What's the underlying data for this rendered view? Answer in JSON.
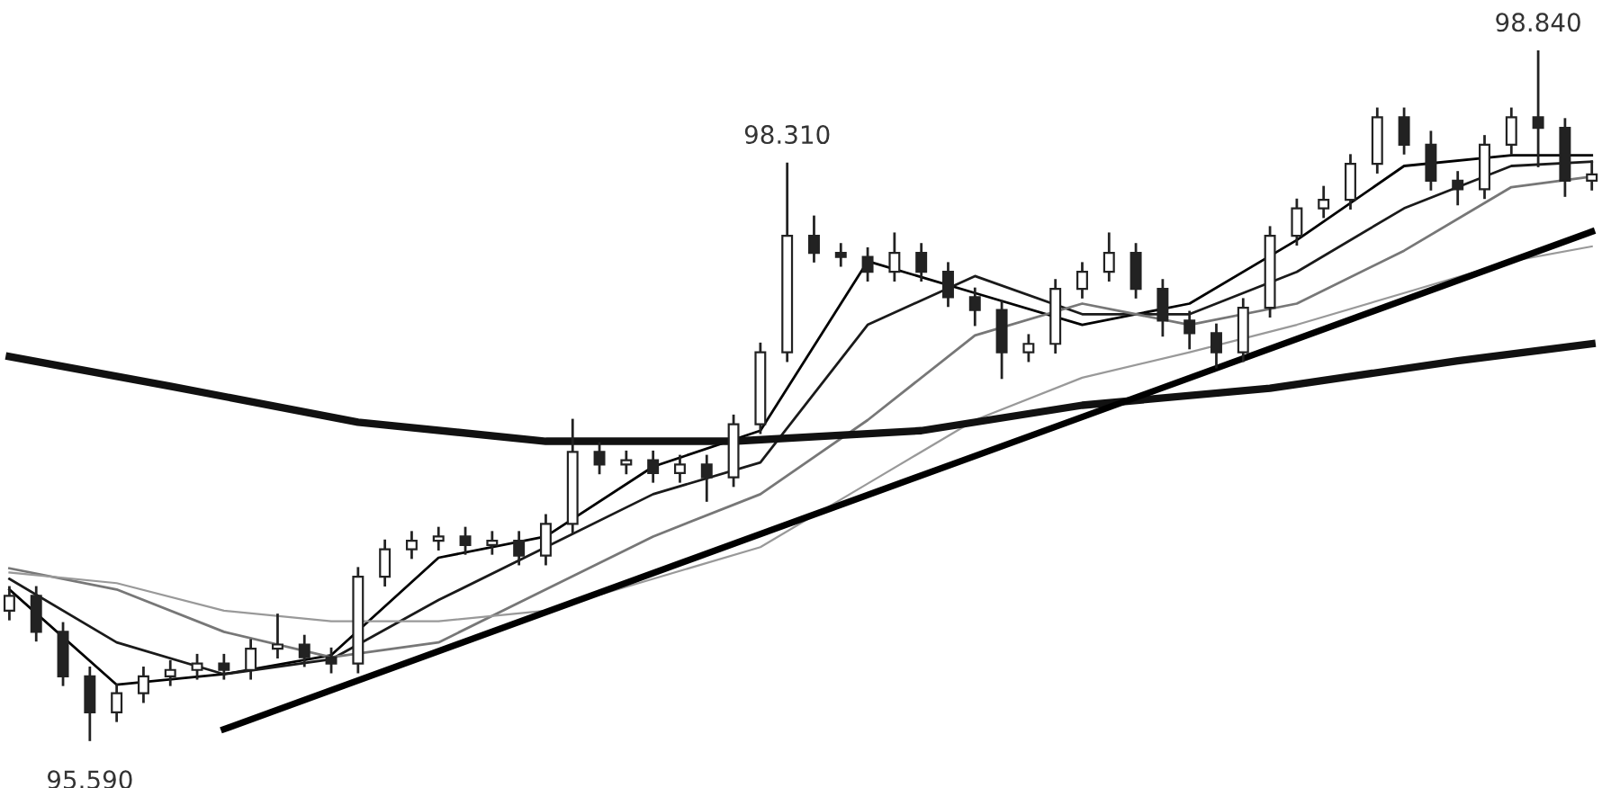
{
  "chart_data": {
    "type": "candlestick",
    "legend": false,
    "categories": [
      null,
      null,
      null,
      null,
      null,
      null,
      null,
      null,
      null,
      null,
      null,
      null,
      null,
      null,
      null,
      null,
      null,
      null,
      null,
      null,
      null,
      null,
      null,
      null,
      null,
      null,
      null,
      null,
      null,
      null,
      null,
      null,
      null,
      null,
      null,
      null,
      null,
      null,
      null,
      null,
      null,
      null,
      null,
      null,
      null,
      null,
      null,
      null,
      null,
      null,
      null,
      null,
      null,
      null,
      null,
      null,
      null,
      null,
      null,
      null
    ],
    "ohlc": [
      [
        96.2,
        96.31,
        96.16,
        96.27
      ],
      [
        96.27,
        96.31,
        96.06,
        96.1
      ],
      [
        96.1,
        96.14,
        95.85,
        95.89
      ],
      [
        95.89,
        95.93,
        95.59,
        95.72
      ],
      [
        95.72,
        95.85,
        95.68,
        95.81
      ],
      [
        95.81,
        95.93,
        95.77,
        95.89
      ],
      [
        95.89,
        95.96,
        95.85,
        95.92
      ],
      [
        95.92,
        95.99,
        95.88,
        95.95
      ],
      [
        95.95,
        95.99,
        95.88,
        95.92
      ],
      [
        95.92,
        96.06,
        95.88,
        96.02
      ],
      [
        96.02,
        96.18,
        95.98,
        96.04
      ],
      [
        96.04,
        96.08,
        95.94,
        95.98
      ],
      [
        95.98,
        96.02,
        95.91,
        95.95
      ],
      [
        95.95,
        96.4,
        95.91,
        96.36
      ],
      [
        96.36,
        96.53,
        96.32,
        96.49
      ],
      [
        96.49,
        96.57,
        96.45,
        96.53
      ],
      [
        96.53,
        96.59,
        96.49,
        96.55
      ],
      [
        96.55,
        96.59,
        96.47,
        96.51
      ],
      [
        96.51,
        96.57,
        96.47,
        96.53
      ],
      [
        96.53,
        96.57,
        96.42,
        96.46
      ],
      [
        96.46,
        96.65,
        96.42,
        96.61
      ],
      [
        96.61,
        97.1,
        96.57,
        96.95
      ],
      [
        96.95,
        96.99,
        96.85,
        96.89
      ],
      [
        96.89,
        96.95,
        96.85,
        96.91
      ],
      [
        96.91,
        96.95,
        96.81,
        96.85
      ],
      [
        96.85,
        96.93,
        96.81,
        96.89
      ],
      [
        96.89,
        96.93,
        96.72,
        96.83
      ],
      [
        96.83,
        97.12,
        96.79,
        97.08
      ],
      [
        97.08,
        97.46,
        97.04,
        97.42
      ],
      [
        97.42,
        98.31,
        97.38,
        97.97
      ],
      [
        97.97,
        98.06,
        97.85,
        97.89
      ],
      [
        97.89,
        97.93,
        97.83,
        97.87
      ],
      [
        97.87,
        97.91,
        97.76,
        97.8
      ],
      [
        97.8,
        97.98,
        97.76,
        97.89
      ],
      [
        97.89,
        97.93,
        97.76,
        97.8
      ],
      [
        97.8,
        97.84,
        97.64,
        97.68
      ],
      [
        97.68,
        97.72,
        97.55,
        97.62
      ],
      [
        97.62,
        97.66,
        97.3,
        97.42
      ],
      [
        97.42,
        97.5,
        97.38,
        97.46
      ],
      [
        97.46,
        97.76,
        97.42,
        97.72
      ],
      [
        97.72,
        97.84,
        97.68,
        97.8
      ],
      [
        97.8,
        97.98,
        97.76,
        97.89
      ],
      [
        97.89,
        97.93,
        97.68,
        97.72
      ],
      [
        97.72,
        97.76,
        97.5,
        97.57
      ],
      [
        97.57,
        97.61,
        97.44,
        97.51
      ],
      [
        97.51,
        97.55,
        97.35,
        97.42
      ],
      [
        97.42,
        97.67,
        97.38,
        97.63
      ],
      [
        97.63,
        98.01,
        97.59,
        97.97
      ],
      [
        97.97,
        98.14,
        97.93,
        98.1
      ],
      [
        98.1,
        98.2,
        98.06,
        98.14
      ],
      [
        98.14,
        98.35,
        98.1,
        98.31
      ],
      [
        98.31,
        98.57,
        98.27,
        98.53
      ],
      [
        98.53,
        98.57,
        98.36,
        98.4
      ],
      [
        98.4,
        98.46,
        98.19,
        98.23
      ],
      [
        98.23,
        98.27,
        98.12,
        98.19
      ],
      [
        98.19,
        98.44,
        98.15,
        98.4
      ],
      [
        98.4,
        98.57,
        98.36,
        98.53
      ],
      [
        98.53,
        98.84,
        98.3,
        98.48
      ],
      [
        98.48,
        98.52,
        98.16,
        98.23
      ],
      [
        98.23,
        98.32,
        98.19,
        98.26
      ]
    ],
    "series": [
      {
        "type": "line",
        "color": "#000000",
        "values": [
          96.3,
          null,
          null,
          null,
          95.85,
          null,
          null,
          null,
          95.9,
          null,
          null,
          null,
          95.99,
          null,
          null,
          null,
          96.45,
          null,
          null,
          null,
          96.55,
          null,
          null,
          null,
          96.88,
          null,
          null,
          null,
          97.05,
          null,
          null,
          null,
          97.85,
          null,
          null,
          null,
          97.7,
          null,
          null,
          null,
          97.55,
          null,
          null,
          null,
          97.65,
          null,
          null,
          null,
          97.95,
          null,
          null,
          null,
          98.3,
          null,
          null,
          null,
          98.35,
          null,
          null,
          98.35
        ]
      },
      {
        "type": "line",
        "color": "#1a1a1a",
        "values": [
          96.35,
          null,
          null,
          null,
          96.05,
          null,
          null,
          null,
          95.9,
          null,
          null,
          null,
          95.97,
          null,
          null,
          null,
          96.25,
          null,
          null,
          null,
          96.5,
          null,
          null,
          null,
          96.75,
          null,
          null,
          null,
          96.9,
          null,
          null,
          null,
          97.55,
          null,
          null,
          null,
          97.78,
          null,
          null,
          null,
          97.6,
          null,
          null,
          null,
          97.6,
          null,
          null,
          null,
          97.8,
          null,
          null,
          null,
          98.1,
          null,
          null,
          null,
          98.3,
          null,
          null,
          98.32
        ]
      },
      {
        "type": "line",
        "color": "#777777",
        "values": [
          96.4,
          null,
          null,
          null,
          96.3,
          null,
          null,
          null,
          96.1,
          null,
          null,
          null,
          95.98,
          null,
          null,
          null,
          96.05,
          null,
          null,
          null,
          96.3,
          null,
          null,
          null,
          96.55,
          null,
          null,
          null,
          96.75,
          null,
          null,
          null,
          97.1,
          null,
          null,
          null,
          97.5,
          null,
          null,
          null,
          97.65,
          null,
          null,
          null,
          97.55,
          null,
          null,
          null,
          97.65,
          null,
          null,
          null,
          97.9,
          null,
          null,
          null,
          98.2,
          null,
          null,
          98.25
        ]
      },
      {
        "type": "line",
        "color": "#999999",
        "values": [
          96.38,
          null,
          null,
          null,
          96.33,
          null,
          null,
          null,
          96.2,
          null,
          null,
          null,
          96.15,
          null,
          null,
          null,
          96.15,
          null,
          null,
          null,
          96.2,
          null,
          null,
          null,
          96.35,
          null,
          null,
          null,
          96.5,
          null,
          null,
          null,
          96.8,
          null,
          null,
          null,
          97.1,
          null,
          null,
          null,
          97.3,
          null,
          null,
          null,
          97.42,
          null,
          null,
          null,
          97.55,
          null,
          null,
          null,
          97.7,
          null,
          null,
          null,
          97.85,
          null,
          null,
          97.92
        ]
      },
      {
        "type": "line",
        "color": "#111111",
        "values": [
          97.4,
          null,
          null,
          null,
          null,
          null,
          97.26,
          null,
          null,
          null,
          null,
          null,
          null,
          97.09,
          null,
          null,
          null,
          null,
          null,
          null,
          97.0,
          null,
          null,
          null,
          null,
          null,
          null,
          97.0,
          null,
          null,
          null,
          null,
          null,
          null,
          97.05,
          null,
          null,
          null,
          null,
          null,
          97.17,
          null,
          null,
          null,
          null,
          null,
          null,
          97.25,
          null,
          null,
          null,
          null,
          null,
          null,
          97.38,
          null,
          null,
          null,
          null,
          97.46
        ]
      },
      {
        "type": "line",
        "color": "#000000",
        "values": [
          null,
          null,
          null,
          null,
          null,
          null,
          null,
          null,
          95.64,
          null,
          null,
          null,
          null,
          null,
          null,
          null,
          null,
          null,
          null,
          null,
          null,
          null,
          null,
          null,
          null,
          null,
          null,
          null,
          null,
          null,
          null,
          null,
          null,
          null,
          null,
          null,
          null,
          null,
          null,
          null,
          null,
          null,
          null,
          null,
          null,
          null,
          null,
          null,
          null,
          null,
          null,
          null,
          null,
          null,
          null,
          null,
          null,
          null,
          null,
          97.99
        ]
      }
    ],
    "annotations": [
      {
        "text": "98.310",
        "y": 98.31
      },
      {
        "text": "98.840",
        "y": 98.84
      },
      {
        "text": "95.590",
        "y": 95.59
      }
    ]
  }
}
